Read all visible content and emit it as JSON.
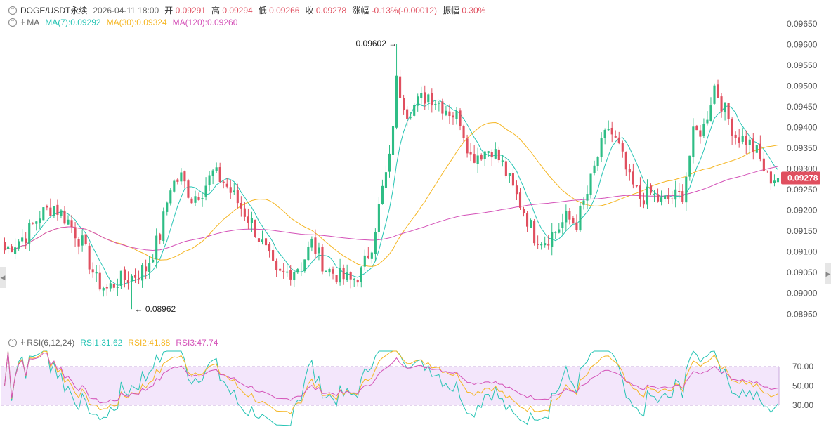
{
  "header": {
    "symbol": "DOGE/USDT永续",
    "datetime": "2026-04-11 18:00",
    "open_label": "开",
    "open_value": "0.09291",
    "high_label": "高",
    "high_value": "0.09294",
    "low_label": "低",
    "low_value": "0.09266",
    "close_label": "收",
    "close_value": "0.09278",
    "change_label": "涨幅",
    "change_value": "-0.13%(-0.00012)",
    "amplitude_label": "振幅",
    "amplitude_value": "0.30%"
  },
  "ma_legend": {
    "title": "MA",
    "ma7": "MA(7):0.09292",
    "ma30": "MA(30):0.09324",
    "ma120": "MA(120):0.09260"
  },
  "rsi_legend": {
    "title": "RSI(6,12,24)",
    "rsi1": "RSI1:31.62",
    "rsi2": "RSI2:41.88",
    "rsi3": "RSI3:47.74"
  },
  "colors": {
    "up": "#2ebd85",
    "down": "#e04f5f",
    "ma7": "#26c4b4",
    "ma30": "#f5b623",
    "ma120": "#d452b8",
    "rsi1": "#26c4b4",
    "rsi2": "#f5b623",
    "rsi3": "#d452b8",
    "rsi_band": "#f3e6fb"
  },
  "chart_data": [
    {
      "type": "candlestick",
      "title": "DOGE/USDT永续",
      "yaxis_ticks": [
        "0.09650",
        "0.09600",
        "0.09550",
        "0.09500",
        "0.09450",
        "0.09400",
        "0.09350",
        "0.09300",
        "0.09250",
        "0.09200",
        "0.09150",
        "0.09100",
        "0.09050",
        "0.09000",
        "0.08950"
      ],
      "ylim": [
        0.0892,
        0.0967
      ],
      "current_price": "0.09278",
      "high_marker": "0.09602",
      "low_marker": "0.08962",
      "anchors": [
        [
          0,
          0.09105
        ],
        [
          6,
          0.0914
        ],
        [
          10,
          0.0919
        ],
        [
          14,
          0.0921
        ],
        [
          18,
          0.09175
        ],
        [
          22,
          0.0912
        ],
        [
          26,
          0.0903
        ],
        [
          29,
          0.0901
        ],
        [
          32,
          0.0903
        ],
        [
          36,
          0.0904
        ],
        [
          40,
          0.0906
        ],
        [
          44,
          0.0914
        ],
        [
          47,
          0.0926
        ],
        [
          50,
          0.0928
        ],
        [
          53,
          0.0923
        ],
        [
          56,
          0.0925
        ],
        [
          59,
          0.0929
        ],
        [
          62,
          0.0927
        ],
        [
          66,
          0.0922
        ],
        [
          70,
          0.0917
        ],
        [
          74,
          0.091
        ],
        [
          77,
          0.0904
        ],
        [
          80,
          0.0905
        ],
        [
          84,
          0.0907
        ],
        [
          87,
          0.0912
        ],
        [
          91,
          0.0906
        ],
        [
          95,
          0.0904
        ],
        [
          98,
          0.0903
        ],
        [
          101,
          0.0905
        ],
        [
          104,
          0.0912
        ],
        [
          107,
          0.0925
        ],
        [
          109,
          0.0932
        ],
        [
          111,
          0.0951
        ],
        [
          114,
          0.0944
        ],
        [
          117,
          0.0946
        ],
        [
          120,
          0.0948
        ],
        [
          123,
          0.0946
        ],
        [
          126,
          0.0944
        ],
        [
          129,
          0.0942
        ],
        [
          132,
          0.0933
        ],
        [
          135,
          0.0934
        ],
        [
          138,
          0.0935
        ],
        [
          141,
          0.0931
        ],
        [
          144,
          0.0925
        ],
        [
          147,
          0.092
        ],
        [
          150,
          0.0914
        ],
        [
          153,
          0.0913
        ],
        [
          156,
          0.0915
        ],
        [
          159,
          0.0918
        ],
        [
          162,
          0.0917
        ],
        [
          165,
          0.0924
        ],
        [
          168,
          0.0933
        ],
        [
          171,
          0.094
        ],
        [
          174,
          0.0935
        ],
        [
          177,
          0.0927
        ],
        [
          180,
          0.0923
        ],
        [
          183,
          0.0924
        ],
        [
          186,
          0.0922
        ],
        [
          189,
          0.0923
        ],
        [
          192,
          0.0924
        ],
        [
          195,
          0.0938
        ],
        [
          198,
          0.094
        ],
        [
          201,
          0.095
        ],
        [
          204,
          0.0944
        ],
        [
          207,
          0.0938
        ],
        [
          210,
          0.0937
        ],
        [
          213,
          0.0934
        ],
        [
          216,
          0.0928
        ],
        [
          219,
          0.09278
        ]
      ],
      "moving_averages": [
        "MA(7)",
        "MA(30)",
        "MA(120)"
      ]
    },
    {
      "type": "line",
      "title": "RSI(6,12,24)",
      "yaxis_ticks": [
        "70.00",
        "50.00",
        "30.00"
      ],
      "band": [
        30,
        70
      ],
      "series": [
        {
          "name": "RSI1",
          "last": 31.62
        },
        {
          "name": "RSI2",
          "last": 41.88
        },
        {
          "name": "RSI3",
          "last": 47.74
        }
      ]
    }
  ]
}
